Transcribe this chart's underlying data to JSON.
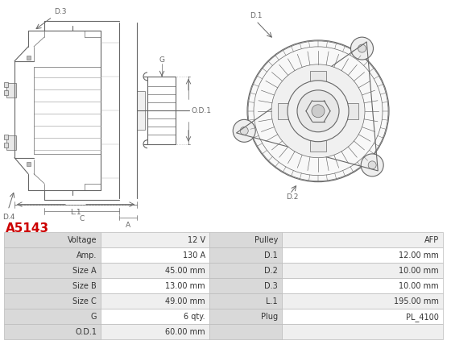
{
  "title": "A5143",
  "title_color": "#cc0000",
  "table_left": [
    [
      "Voltage",
      "12 V"
    ],
    [
      "Amp.",
      "130 A"
    ],
    [
      "Size A",
      "45.00 mm"
    ],
    [
      "Size B",
      "13.00 mm"
    ],
    [
      "Size C",
      "49.00 mm"
    ],
    [
      "G",
      "6 qty."
    ],
    [
      "O.D.1",
      "60.00 mm"
    ]
  ],
  "table_right": [
    [
      "Pulley",
      "AFP"
    ],
    [
      "D.1",
      "12.00 mm"
    ],
    [
      "D.2",
      "10.00 mm"
    ],
    [
      "D.3",
      "10.00 mm"
    ],
    [
      "L.1",
      "195.00 mm"
    ],
    [
      "Plug",
      "PL_4100"
    ],
    [
      "",
      ""
    ]
  ],
  "header_bg": "#d9d9d9",
  "row_bg_alt": "#efefef",
  "row_bg": "#ffffff",
  "border_color": "#bbbbbb",
  "fig_bg": "#ffffff",
  "font_size": 7.0,
  "gray": "#666666",
  "lgray": "#aaaaaa"
}
